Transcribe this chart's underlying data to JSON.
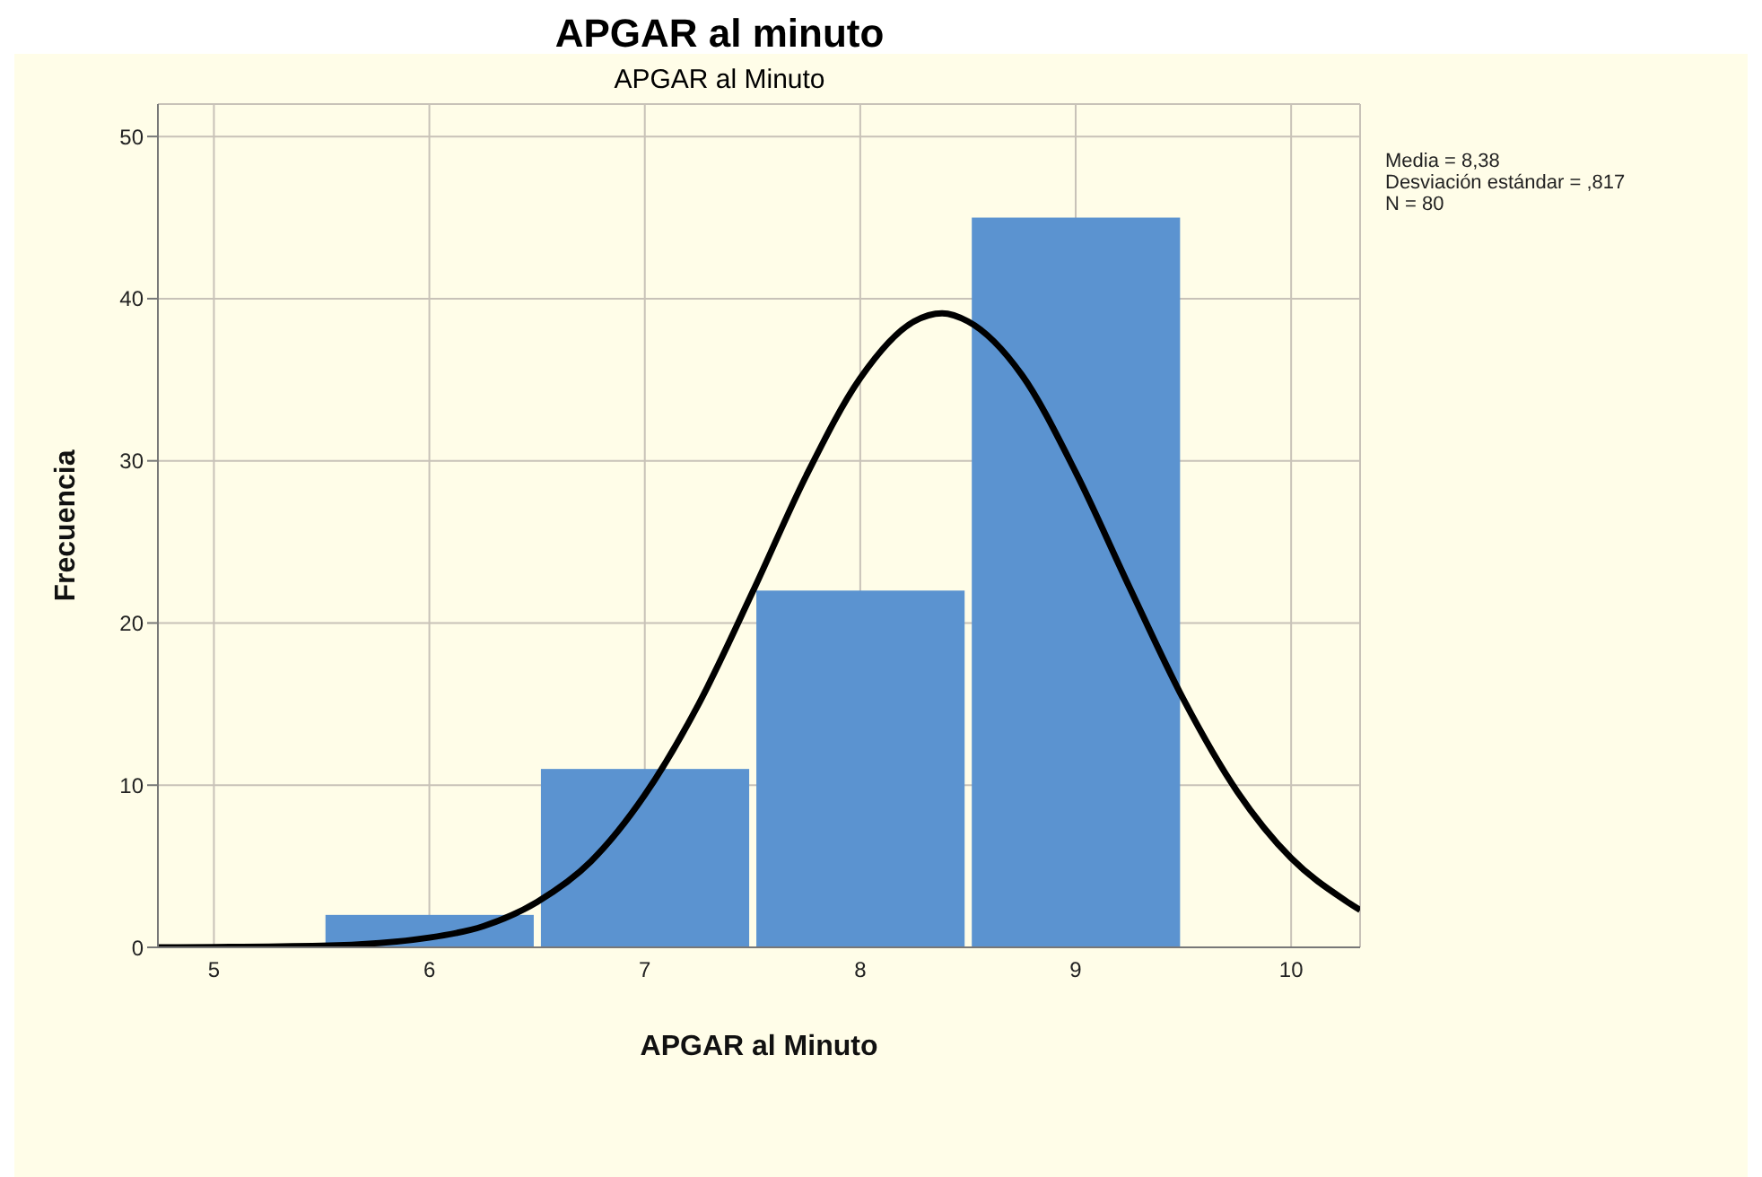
{
  "chart_data": {
    "type": "histogram",
    "title": "APGAR al minuto",
    "subtitle": "APGAR al Minuto",
    "xlabel": "APGAR al Minuto",
    "ylabel": "Frecuencia",
    "bins": [
      5.5,
      6.5,
      7.5,
      8.5,
      9.5
    ],
    "values": [
      2,
      11,
      22,
      45
    ],
    "color": "#5b93d0",
    "series": [
      {
        "type": "line",
        "color": "#000000",
        "x": [
          4.74,
          5.5,
          6.0,
          6.25,
          6.5,
          6.75,
          7.0,
          7.25,
          7.5,
          7.75,
          8.0,
          8.25,
          8.38,
          8.5,
          8.75,
          9.0,
          9.25,
          9.5,
          9.75,
          10.0,
          10.25,
          10.32
        ],
        "values": [
          0,
          0.1,
          0.6,
          1.3,
          2.8,
          5.3,
          9.4,
          15.0,
          21.9,
          29.1,
          35.1,
          38.6,
          39.1,
          38.6,
          35.3,
          29.3,
          22.2,
          15.3,
          9.6,
          5.5,
          2.9,
          2.3
        ]
      }
    ],
    "xlim": [
      4.74,
      10.32
    ],
    "xticks": [
      5,
      6,
      7,
      8,
      9,
      10
    ],
    "ylim": [
      0,
      52
    ],
    "yticks": [
      0,
      10,
      20,
      30,
      40,
      50
    ],
    "grid": true,
    "marker": "none",
    "line_style": "solid",
    "annotations": [
      "Media = 8,38",
      "Desviación estándar = ,817",
      "N = 80"
    ]
  }
}
